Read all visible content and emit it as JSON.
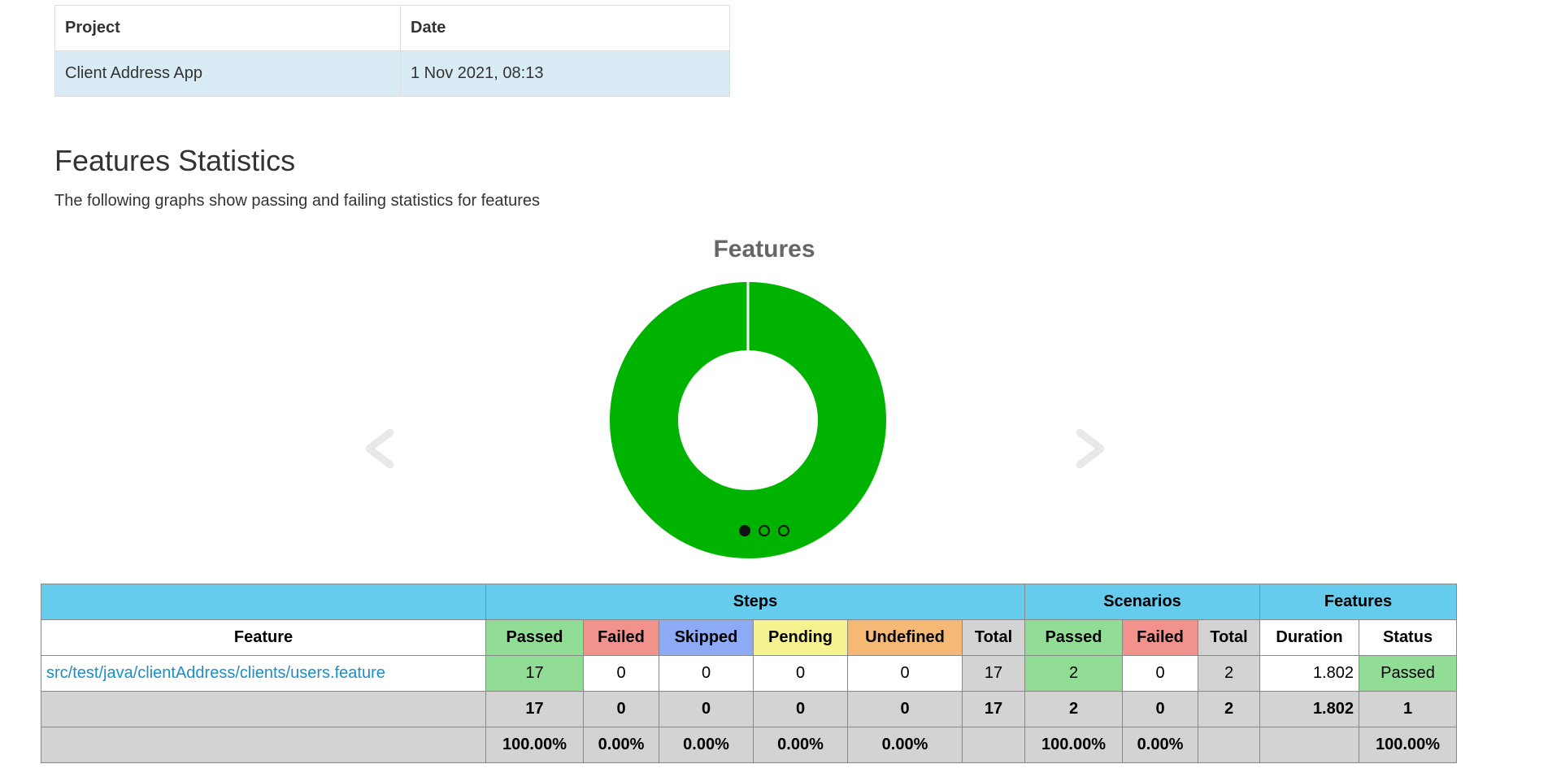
{
  "info": {
    "headers": {
      "project": "Project",
      "date": "Date"
    },
    "row": {
      "project": "Client Address App",
      "date": "1 Nov 2021, 08:13"
    }
  },
  "section": {
    "title": "Features Statistics",
    "description": "The following graphs show passing and failing statistics for features"
  },
  "chart_data": {
    "type": "pie",
    "donut": true,
    "title": "Features",
    "slices": [
      {
        "label": "Passed",
        "value": 1,
        "color": "#00b300"
      }
    ]
  },
  "carousel": {
    "slide_count": 3,
    "active_index": 0,
    "arrow_color": "#eeeeee"
  },
  "stats": {
    "group_headers": {
      "steps": "Steps",
      "scenarios": "Scenarios",
      "features": "Features"
    },
    "columns": {
      "feature": "Feature",
      "steps_passed": "Passed",
      "steps_failed": "Failed",
      "steps_skipped": "Skipped",
      "steps_pending": "Pending",
      "steps_undefined": "Undefined",
      "steps_total": "Total",
      "scen_passed": "Passed",
      "scen_failed": "Failed",
      "scen_total": "Total",
      "duration": "Duration",
      "status": "Status"
    },
    "row": {
      "feature": "src/test/java/clientAddress/clients/users.feature",
      "steps_passed": "17",
      "steps_failed": "0",
      "steps_skipped": "0",
      "steps_pending": "0",
      "steps_undefined": "0",
      "steps_total": "17",
      "scen_passed": "2",
      "scen_failed": "0",
      "scen_total": "2",
      "duration": "1.802",
      "status": "Passed"
    },
    "totals": {
      "steps_passed": "17",
      "steps_failed": "0",
      "steps_skipped": "0",
      "steps_pending": "0",
      "steps_undefined": "0",
      "steps_total": "17",
      "scen_passed": "2",
      "scen_failed": "0",
      "scen_total": "2",
      "duration": "1.802",
      "status": "1"
    },
    "percents": {
      "steps_passed": "100.00%",
      "steps_failed": "0.00%",
      "steps_skipped": "0.00%",
      "steps_pending": "0.00%",
      "steps_undefined": "0.00%",
      "scen_passed": "100.00%",
      "scen_failed": "0.00%",
      "status": "100.00%"
    },
    "colors": {
      "header_blue": "#66ccee",
      "passed": "#92dd96",
      "failed": "#f2928c",
      "skipped": "#8daaf5",
      "pending": "#f5f28f",
      "undefined": "#f5b975",
      "total": "#d3d3d3",
      "link": "#1b8ec9"
    }
  }
}
